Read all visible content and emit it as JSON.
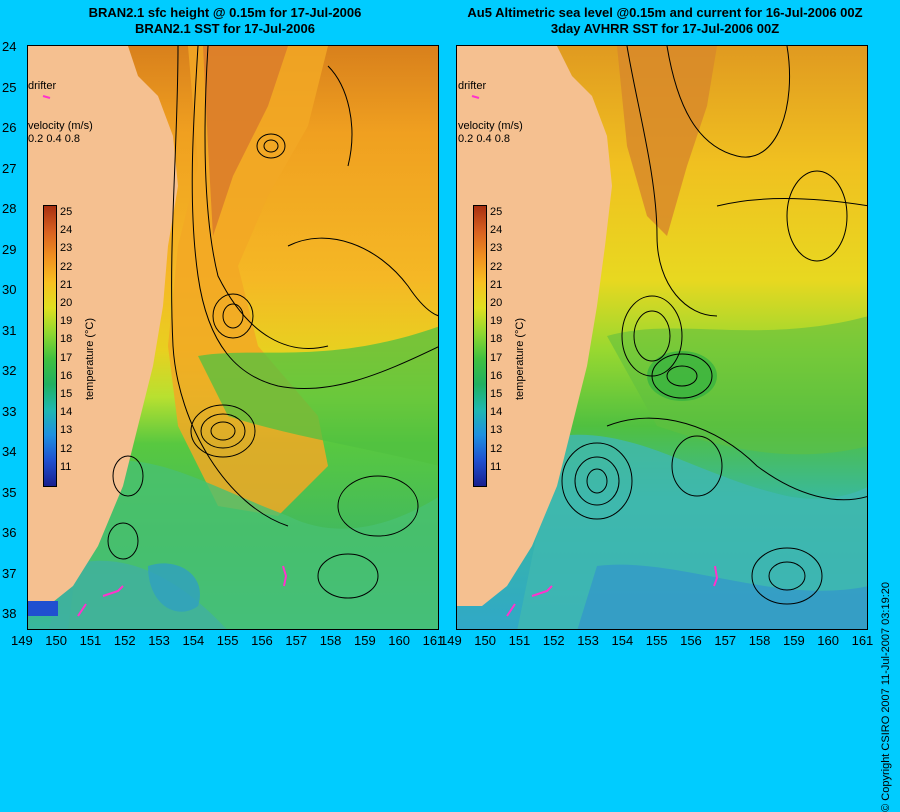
{
  "titles": {
    "left_line1": "BRAN2.1 sfc height @ 0.15m for 17-Jul-2006",
    "left_line2": "BRAN2.1 SST for 17-Jul-2006",
    "right_line1": "Au5 Altimetric sea level  @0.15m and current for 16-Jul-2006 00Z",
    "right_line2": "3day AVHRR SST for 17-Jul-2006 00Z"
  },
  "y_axis": {
    "labels": [
      "24",
      "25",
      "26",
      "27",
      "28",
      "29",
      "30",
      "31",
      "32",
      "33",
      "34",
      "35",
      "36",
      "37",
      "38"
    ]
  },
  "x_axis": {
    "labels": [
      "149",
      "150",
      "151",
      "152",
      "153",
      "154",
      "155",
      "156",
      "157",
      "158",
      "159",
      "160",
      "161"
    ]
  },
  "legend": {
    "drifter": "drifter",
    "velocity_title": "velocity (m/s)",
    "velocity_values": "0.2 0.4 0.8",
    "colorbar_title": "temperature (°C)",
    "colorbar_ticks": [
      "25",
      "24",
      "23",
      "22",
      "21",
      "20",
      "19",
      "18",
      "17",
      "16",
      "15",
      "14",
      "13",
      "12",
      "11"
    ]
  },
  "copyright": "© Copyright CSIRO 2007   11-Jul-2007 03:19:20",
  "colors": {
    "background": "#00ccff",
    "land": "#f5c090",
    "drifter": "#ff33cc"
  }
}
